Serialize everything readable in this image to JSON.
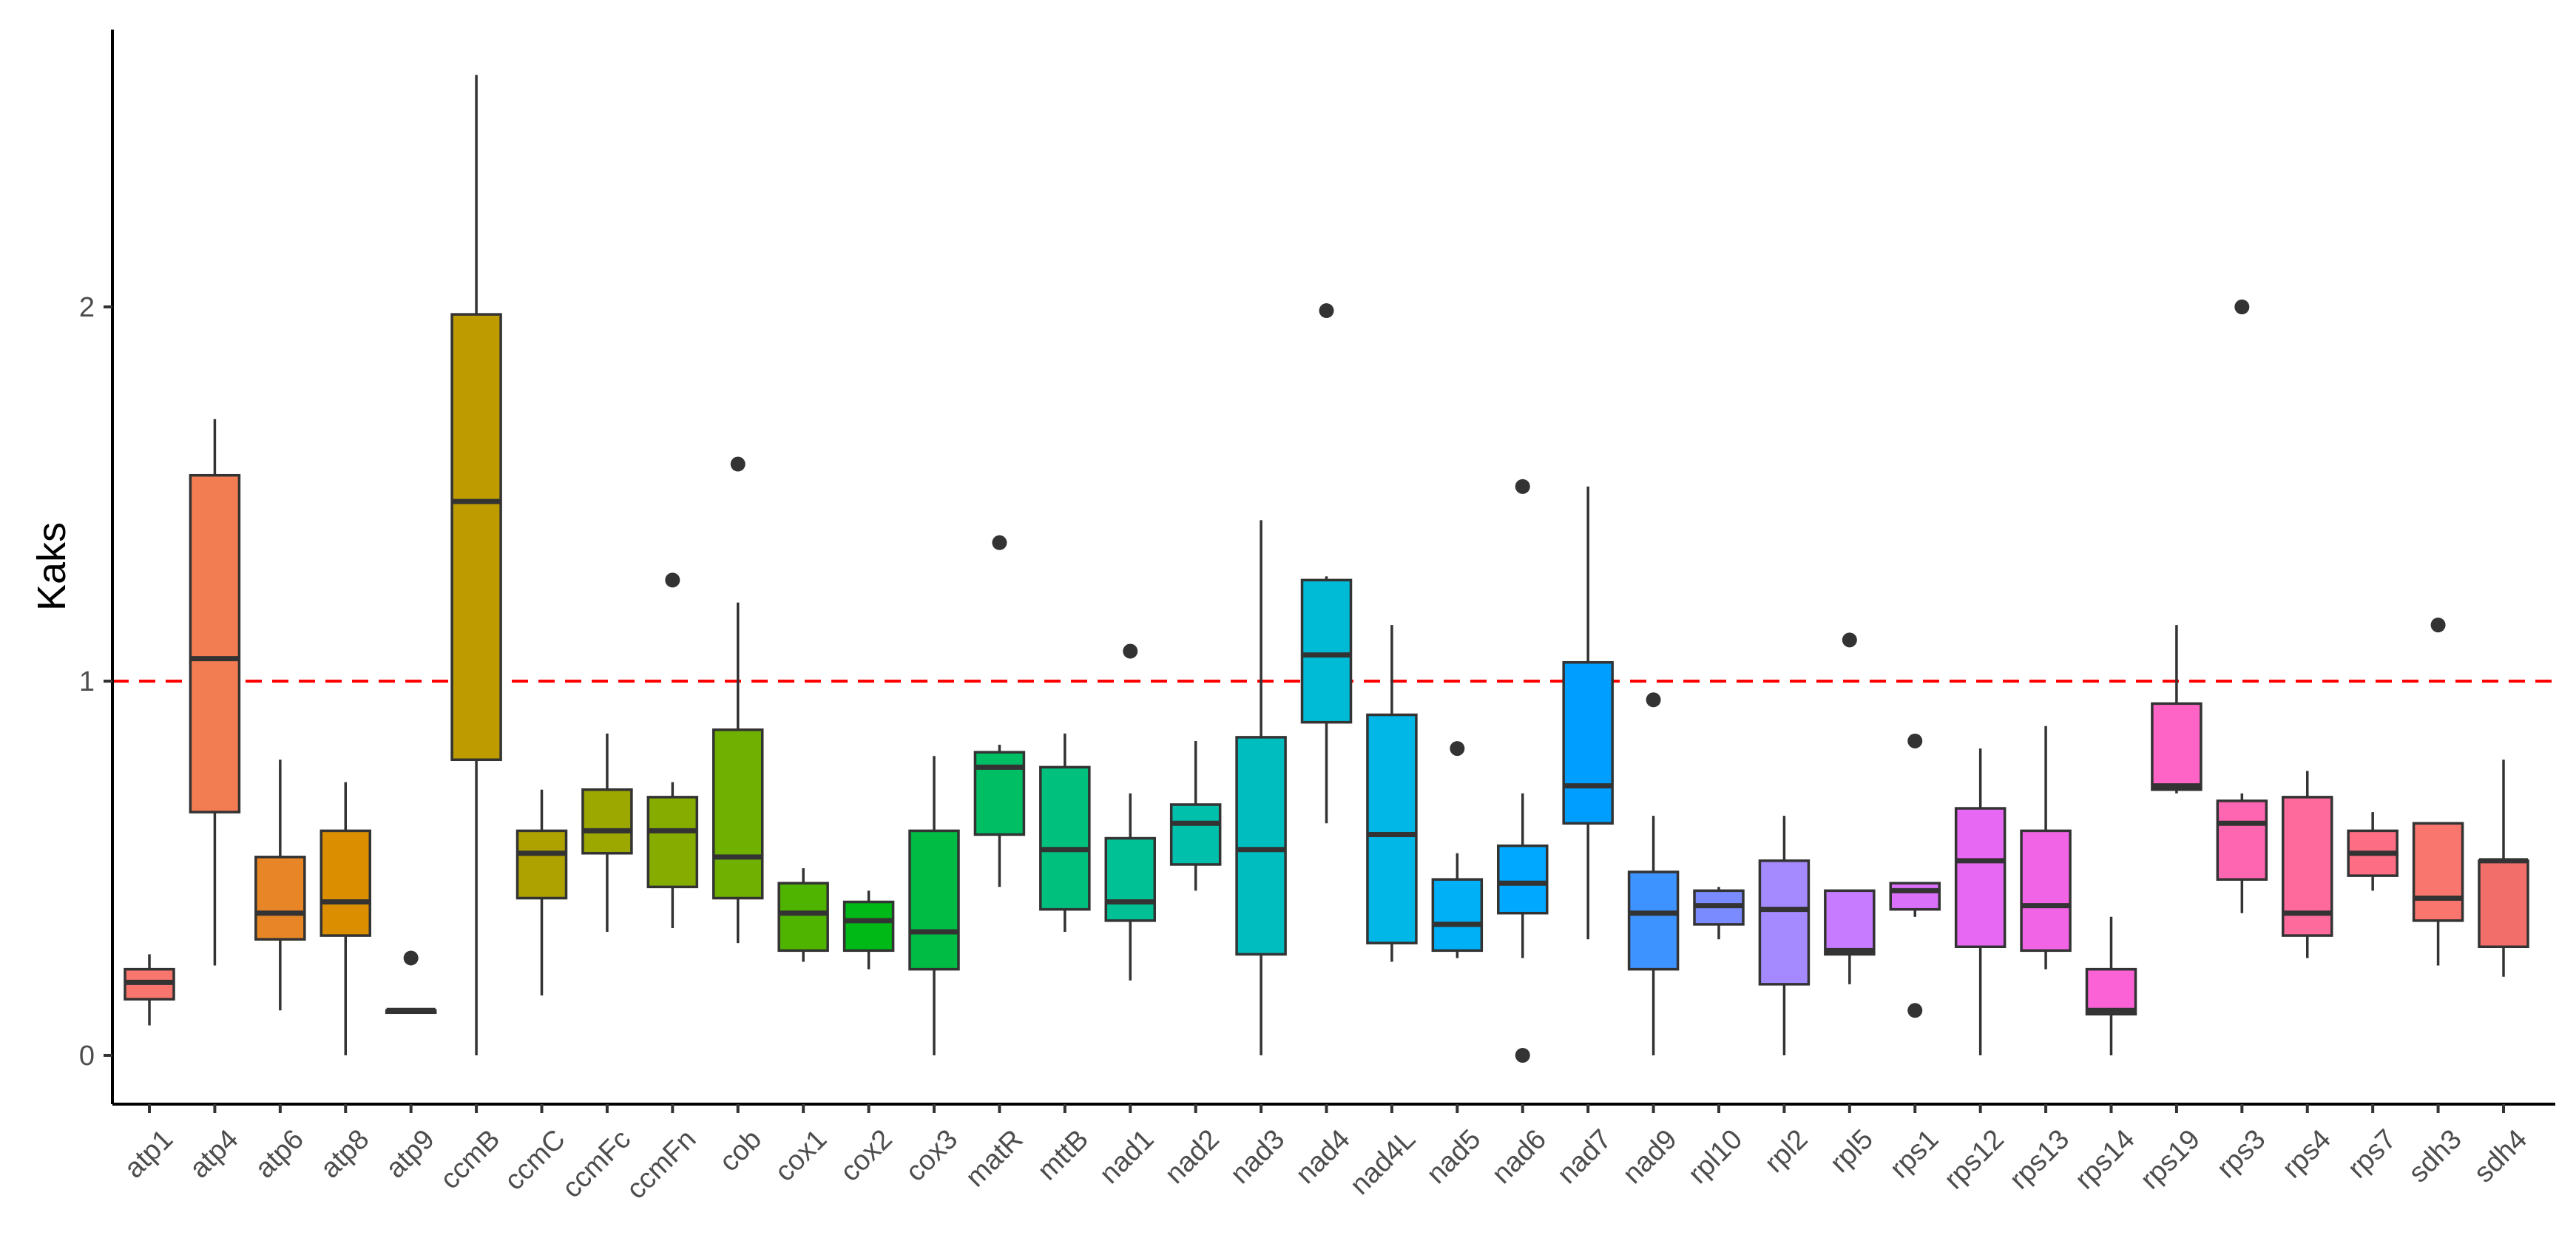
{
  "chart_data": {
    "type": "boxplot",
    "title": "",
    "xlabel": "",
    "ylabel": "Kaks",
    "ylim": [
      -0.13,
      2.75
    ],
    "yticks": [
      0,
      1,
      2
    ],
    "reference_line": {
      "y": 1,
      "color": "#ff0000",
      "style": "dashed"
    },
    "grid": false,
    "legend": "none",
    "categories": [
      "atp1",
      "atp4",
      "atp6",
      "atp8",
      "atp9",
      "ccmB",
      "ccmC",
      "ccmFc",
      "ccmFn",
      "cob",
      "cox1",
      "cox2",
      "cox3",
      "matR",
      "mttB",
      "nad1",
      "nad2",
      "nad3",
      "nad4",
      "nad4L",
      "nad5",
      "nad6",
      "nad7",
      "nad9",
      "rpl10",
      "rpl2",
      "rpl5",
      "rps1",
      "rps12",
      "rps13",
      "rps14",
      "rps19",
      "rps3",
      "rps4",
      "rps7",
      "sdh3",
      "sdh4"
    ],
    "colors": [
      "#F8766D",
      "#F27D52",
      "#E88526",
      "#DB8E00",
      "#CD9600",
      "#BE9C00",
      "#AEA200",
      "#9CA700",
      "#87AC00",
      "#6FB000",
      "#4FB400",
      "#00B816",
      "#00BB44",
      "#00BE64",
      "#00C07E",
      "#00C096",
      "#00C0AB",
      "#00BEC0",
      "#00BBD5",
      "#00B7E8",
      "#00B0F6",
      "#00A8FF",
      "#009EFF",
      "#3D93FF",
      "#7A8BFF",
      "#A58AFF",
      "#C77CFF",
      "#DA71FB",
      "#E769F3",
      "#F264E6",
      "#FA62D6",
      "#FD64C6",
      "#FF66B2",
      "#FF6A9C",
      "#FD6E85",
      "#F8766D",
      "#F26E6A"
    ],
    "boxes": [
      {
        "name": "atp1",
        "lower_whisker": 0.08,
        "q1": 0.15,
        "median": 0.195,
        "q3": 0.23,
        "upper_whisker": 0.27,
        "outliers": []
      },
      {
        "name": "atp4",
        "lower_whisker": 0.24,
        "q1": 0.65,
        "median": 1.06,
        "q3": 1.55,
        "upper_whisker": 1.7,
        "outliers": []
      },
      {
        "name": "atp6",
        "lower_whisker": 0.12,
        "q1": 0.31,
        "median": 0.38,
        "q3": 0.53,
        "upper_whisker": 0.79,
        "outliers": []
      },
      {
        "name": "atp8",
        "lower_whisker": 0.0,
        "q1": 0.32,
        "median": 0.41,
        "q3": 0.6,
        "upper_whisker": 0.73,
        "outliers": []
      },
      {
        "name": "atp9",
        "lower_whisker": 0.12,
        "q1": 0.12,
        "median": 0.12,
        "q3": 0.12,
        "upper_whisker": 0.12,
        "outliers": [
          0.26
        ]
      },
      {
        "name": "ccmB",
        "lower_whisker": 0.0,
        "q1": 0.79,
        "median": 1.48,
        "q3": 1.98,
        "upper_whisker": 2.62,
        "outliers": []
      },
      {
        "name": "ccmC",
        "lower_whisker": 0.16,
        "q1": 0.42,
        "median": 0.54,
        "q3": 0.6,
        "upper_whisker": 0.71,
        "outliers": []
      },
      {
        "name": "ccmFc",
        "lower_whisker": 0.33,
        "q1": 0.54,
        "median": 0.6,
        "q3": 0.71,
        "upper_whisker": 0.86,
        "outliers": []
      },
      {
        "name": "ccmFn",
        "lower_whisker": 0.34,
        "q1": 0.45,
        "median": 0.6,
        "q3": 0.69,
        "upper_whisker": 0.73,
        "outliers": [
          1.27
        ]
      },
      {
        "name": "cob",
        "lower_whisker": 0.3,
        "q1": 0.42,
        "median": 0.53,
        "q3": 0.87,
        "upper_whisker": 1.21,
        "outliers": [
          1.58
        ]
      },
      {
        "name": "cox1",
        "lower_whisker": 0.25,
        "q1": 0.28,
        "median": 0.38,
        "q3": 0.46,
        "upper_whisker": 0.5,
        "outliers": []
      },
      {
        "name": "cox2",
        "lower_whisker": 0.23,
        "q1": 0.28,
        "median": 0.36,
        "q3": 0.41,
        "upper_whisker": 0.44,
        "outliers": []
      },
      {
        "name": "cox3",
        "lower_whisker": 0.0,
        "q1": 0.23,
        "median": 0.33,
        "q3": 0.6,
        "upper_whisker": 0.8,
        "outliers": []
      },
      {
        "name": "matR",
        "lower_whisker": 0.45,
        "q1": 0.59,
        "median": 0.77,
        "q3": 0.81,
        "upper_whisker": 0.83,
        "outliers": [
          1.37
        ]
      },
      {
        "name": "mttB",
        "lower_whisker": 0.33,
        "q1": 0.39,
        "median": 0.55,
        "q3": 0.77,
        "upper_whisker": 0.86,
        "outliers": []
      },
      {
        "name": "nad1",
        "lower_whisker": 0.2,
        "q1": 0.36,
        "median": 0.41,
        "q3": 0.58,
        "upper_whisker": 0.7,
        "outliers": [
          1.08
        ]
      },
      {
        "name": "nad2",
        "lower_whisker": 0.44,
        "q1": 0.51,
        "median": 0.62,
        "q3": 0.67,
        "upper_whisker": 0.84,
        "outliers": []
      },
      {
        "name": "nad3",
        "lower_whisker": 0.0,
        "q1": 0.27,
        "median": 0.55,
        "q3": 0.85,
        "upper_whisker": 1.43,
        "outliers": []
      },
      {
        "name": "nad4",
        "lower_whisker": 0.62,
        "q1": 0.89,
        "median": 1.07,
        "q3": 1.27,
        "upper_whisker": 1.28,
        "outliers": [
          1.99
        ]
      },
      {
        "name": "nad4L",
        "lower_whisker": 0.25,
        "q1": 0.3,
        "median": 0.59,
        "q3": 0.91,
        "upper_whisker": 1.15,
        "outliers": []
      },
      {
        "name": "nad5",
        "lower_whisker": 0.26,
        "q1": 0.28,
        "median": 0.35,
        "q3": 0.47,
        "upper_whisker": 0.54,
        "outliers": [
          0.82
        ]
      },
      {
        "name": "nad6",
        "lower_whisker": 0.26,
        "q1": 0.38,
        "median": 0.46,
        "q3": 0.56,
        "upper_whisker": 0.7,
        "outliers": [
          1.52,
          0.0
        ]
      },
      {
        "name": "nad7",
        "lower_whisker": 0.31,
        "q1": 0.62,
        "median": 0.72,
        "q3": 1.05,
        "upper_whisker": 1.52,
        "outliers": []
      },
      {
        "name": "nad9",
        "lower_whisker": 0.0,
        "q1": 0.23,
        "median": 0.38,
        "q3": 0.49,
        "upper_whisker": 0.64,
        "outliers": [
          0.95
        ]
      },
      {
        "name": "rpl10",
        "lower_whisker": 0.31,
        "q1": 0.35,
        "median": 0.4,
        "q3": 0.44,
        "upper_whisker": 0.45,
        "outliers": []
      },
      {
        "name": "rpl2",
        "lower_whisker": 0.0,
        "q1": 0.19,
        "median": 0.39,
        "q3": 0.52,
        "upper_whisker": 0.64,
        "outliers": []
      },
      {
        "name": "rpl5",
        "lower_whisker": 0.19,
        "q1": 0.27,
        "median": 0.28,
        "q3": 0.44,
        "upper_whisker": 0.44,
        "outliers": [
          1.11
        ]
      },
      {
        "name": "rps1",
        "lower_whisker": 0.37,
        "q1": 0.39,
        "median": 0.44,
        "q3": 0.46,
        "upper_whisker": 0.46,
        "outliers": [
          0.84,
          0.12
        ]
      },
      {
        "name": "rps12",
        "lower_whisker": 0.0,
        "q1": 0.29,
        "median": 0.52,
        "q3": 0.66,
        "upper_whisker": 0.82,
        "outliers": []
      },
      {
        "name": "rps13",
        "lower_whisker": 0.23,
        "q1": 0.28,
        "median": 0.4,
        "q3": 0.6,
        "upper_whisker": 0.88,
        "outliers": []
      },
      {
        "name": "rps14",
        "lower_whisker": 0.0,
        "q1": 0.11,
        "median": 0.12,
        "q3": 0.23,
        "upper_whisker": 0.37,
        "outliers": []
      },
      {
        "name": "rps19",
        "lower_whisker": 0.7,
        "q1": 0.71,
        "median": 0.72,
        "q3": 0.94,
        "upper_whisker": 1.15,
        "outliers": []
      },
      {
        "name": "rps3",
        "lower_whisker": 0.38,
        "q1": 0.47,
        "median": 0.62,
        "q3": 0.68,
        "upper_whisker": 0.7,
        "outliers": [
          2.0
        ]
      },
      {
        "name": "rps4",
        "lower_whisker": 0.26,
        "q1": 0.32,
        "median": 0.38,
        "q3": 0.69,
        "upper_whisker": 0.76,
        "outliers": []
      },
      {
        "name": "rps7",
        "lower_whisker": 0.44,
        "q1": 0.48,
        "median": 0.54,
        "q3": 0.6,
        "upper_whisker": 0.65,
        "outliers": []
      },
      {
        "name": "sdh3",
        "lower_whisker": 0.24,
        "q1": 0.36,
        "median": 0.42,
        "q3": 0.62,
        "upper_whisker": 0.62,
        "outliers": [
          1.15
        ]
      },
      {
        "name": "sdh4",
        "lower_whisker": 0.21,
        "q1": 0.29,
        "median": 0.52,
        "q3": 0.52,
        "upper_whisker": 0.79,
        "outliers": []
      }
    ]
  }
}
